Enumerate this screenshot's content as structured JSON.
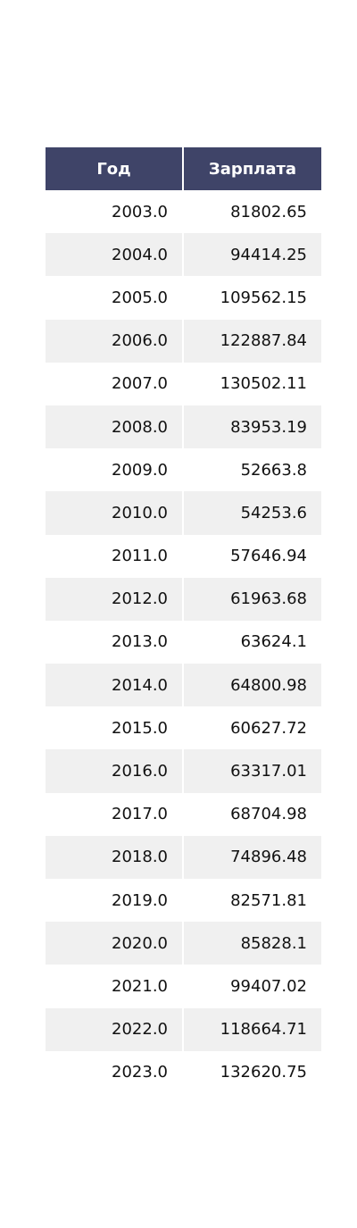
{
  "chart_data": {
    "type": "table",
    "columns": [
      "Год",
      "Зарплата"
    ],
    "rows": [
      [
        "2003.0",
        "81802.65"
      ],
      [
        "2004.0",
        "94414.25"
      ],
      [
        "2005.0",
        "109562.15"
      ],
      [
        "2006.0",
        "122887.84"
      ],
      [
        "2007.0",
        "130502.11"
      ],
      [
        "2008.0",
        "83953.19"
      ],
      [
        "2009.0",
        "52663.8"
      ],
      [
        "2010.0",
        "54253.6"
      ],
      [
        "2011.0",
        "57646.94"
      ],
      [
        "2012.0",
        "61963.68"
      ],
      [
        "2013.0",
        "63624.1"
      ],
      [
        "2014.0",
        "64800.98"
      ],
      [
        "2015.0",
        "60627.72"
      ],
      [
        "2016.0",
        "63317.01"
      ],
      [
        "2017.0",
        "68704.98"
      ],
      [
        "2018.0",
        "74896.48"
      ],
      [
        "2019.0",
        "82571.81"
      ],
      [
        "2020.0",
        "85828.1"
      ],
      [
        "2021.0",
        "99407.02"
      ],
      [
        "2022.0",
        "118664.71"
      ],
      [
        "2023.0",
        "132620.75"
      ]
    ],
    "colors": {
      "header_background": "#3f4468",
      "header_text": "#ffffff",
      "row_stripe": "#f0f0f0",
      "row_background": "#ffffff"
    }
  }
}
